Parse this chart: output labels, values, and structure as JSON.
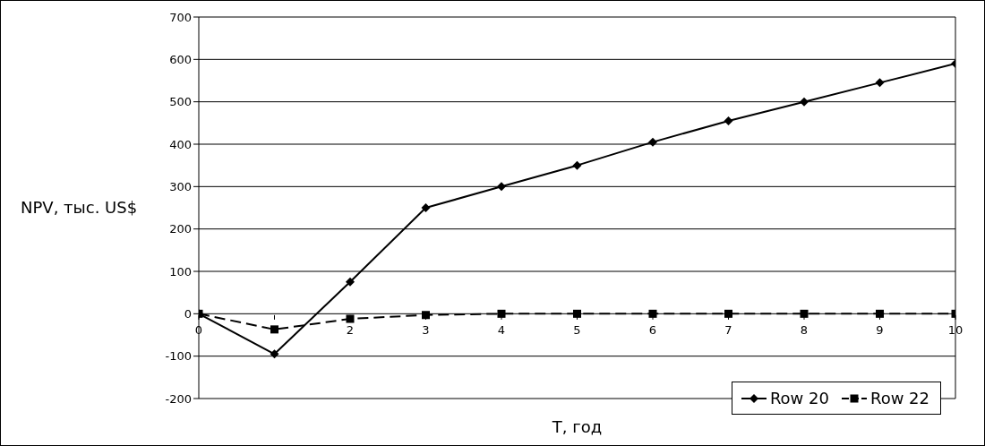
{
  "chart_data": {
    "type": "line",
    "xlabel": "T, год",
    "ylabel": "NPV, тыс. US$",
    "x": [
      0,
      1,
      2,
      3,
      4,
      5,
      6,
      7,
      8,
      9,
      10
    ],
    "xlim": [
      0,
      10
    ],
    "xticks": [
      0,
      {
        "value": 1,
        "label": null
      },
      2,
      3,
      4,
      5,
      6,
      7,
      8,
      9,
      10
    ],
    "ylim": [
      -200,
      700
    ],
    "yticks": [
      -200,
      -100,
      0,
      100,
      200,
      300,
      400,
      500,
      600,
      700
    ],
    "grid": "y",
    "legend": "bottom right",
    "series": [
      {
        "name": "Row 20",
        "color": "#000000",
        "marker": "diamond",
        "line_style": "solid",
        "values": [
          0,
          -95,
          75,
          250,
          300,
          350,
          405,
          455,
          500,
          545,
          590
        ]
      },
      {
        "name": "Row 22",
        "color": "#000000",
        "marker": "square",
        "line_style": "dashed",
        "values": [
          0,
          -37,
          -12,
          -3,
          0,
          0,
          0,
          0,
          0,
          0,
          0
        ]
      }
    ]
  }
}
